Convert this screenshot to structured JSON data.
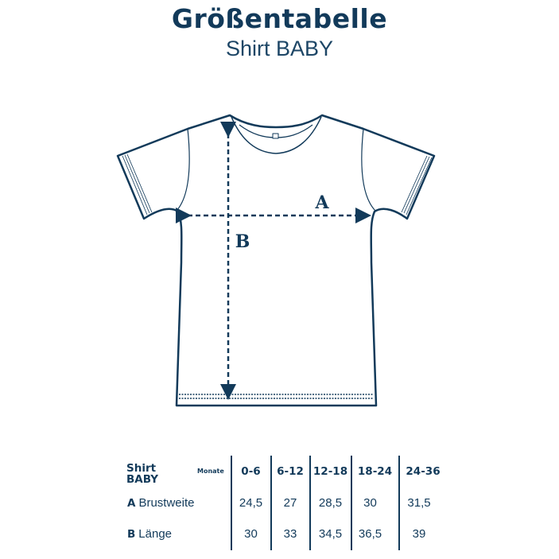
{
  "header": {
    "title": "Größentabelle",
    "subtitle": "Shirt BABY"
  },
  "diagram": {
    "label_a": "A",
    "label_b": "B",
    "color": "#123a5a"
  },
  "table": {
    "product_line1": "Shirt",
    "product_line2": "BABY",
    "months_label": "Monate",
    "columns": [
      "0-6",
      "6-12",
      "12-18",
      "18-24",
      "24-36"
    ],
    "rows": [
      {
        "key": "A",
        "label": "Brustweite",
        "values": [
          "24,5",
          "27",
          "28,5",
          "30",
          "31,5"
        ]
      },
      {
        "key": "B",
        "label": "Länge",
        "values": [
          "30",
          "33",
          "34,5",
          "36,5",
          "39"
        ]
      }
    ]
  }
}
